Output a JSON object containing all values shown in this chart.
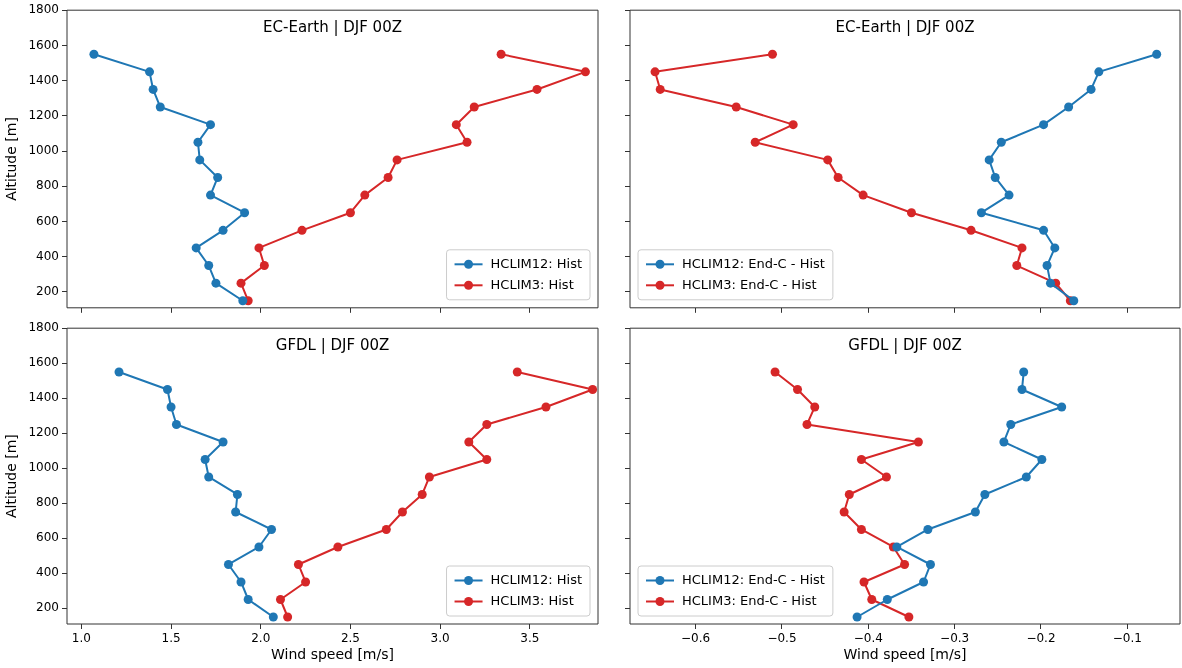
{
  "chart_data": [
    {
      "type": "line",
      "title": "EC-Earth | DJF 00Z",
      "ylabel": "Altitude [m]",
      "xlim": [
        0.92,
        3.88
      ],
      "xticks": [
        1,
        1.5,
        2,
        2.5,
        3,
        3.5
      ],
      "ylim": [
        110,
        1800
      ],
      "yticks": [
        200,
        400,
        600,
        800,
        1000,
        1200,
        1400,
        1600,
        1800
      ],
      "tick_labels": "y",
      "legend": "bottom right",
      "marker": "circle",
      "line_style": "solid",
      "series": [
        {
          "name": "HCLIM12: Hist",
          "color": "#1f77b4",
          "x": [
            1.9,
            1.75,
            1.71,
            1.64,
            1.79,
            1.91,
            1.72,
            1.76,
            1.66,
            1.65,
            1.72,
            1.44,
            1.4,
            1.38,
            1.07
          ],
          "values": [
            150,
            250,
            350,
            450,
            550,
            650,
            750,
            850,
            950,
            1050,
            1150,
            1250,
            1350,
            1450,
            1550
          ]
        },
        {
          "name": "HCLIM3: Hist",
          "color": "#d62728",
          "x": [
            1.93,
            1.89,
            2.02,
            1.99,
            2.23,
            2.5,
            2.58,
            2.71,
            2.76,
            3.15,
            3.09,
            3.19,
            3.54,
            3.81,
            3.34
          ],
          "values": [
            150,
            250,
            350,
            450,
            550,
            650,
            750,
            850,
            950,
            1050,
            1150,
            1250,
            1350,
            1450,
            1550
          ]
        }
      ]
    },
    {
      "type": "line",
      "title": "EC-Earth | DJF 00Z",
      "xlim": [
        -0.676,
        -0.039
      ],
      "xticks": [
        -0.6,
        -0.5,
        -0.4,
        -0.3,
        -0.2,
        -0.1
      ],
      "ylim": [
        110,
        1800
      ],
      "yticks": [
        200,
        400,
        600,
        800,
        1000,
        1200,
        1400,
        1600,
        1800
      ],
      "tick_labels": false,
      "legend": "bottom left",
      "marker": "circle",
      "line_style": "solid",
      "series": [
        {
          "name": "HCLIM12: End-C - Hist",
          "color": "#1f77b4",
          "x": [
            -0.162,
            -0.189,
            -0.193,
            -0.184,
            -0.197,
            -0.269,
            -0.237,
            -0.253,
            -0.26,
            -0.246,
            -0.197,
            -0.168,
            -0.142,
            -0.133,
            -0.066
          ],
          "values": [
            150,
            250,
            350,
            450,
            550,
            650,
            750,
            850,
            950,
            1050,
            1150,
            1250,
            1350,
            1450,
            1550
          ]
        },
        {
          "name": "HCLIM3: End-C - Hist",
          "color": "#d62728",
          "x": [
            -0.166,
            -0.183,
            -0.228,
            -0.222,
            -0.281,
            -0.35,
            -0.406,
            -0.435,
            -0.447,
            -0.531,
            -0.487,
            -0.553,
            -0.641,
            -0.647,
            -0.511
          ],
          "values": [
            150,
            250,
            350,
            450,
            550,
            650,
            750,
            850,
            950,
            1050,
            1150,
            1250,
            1350,
            1450,
            1550
          ]
        }
      ]
    },
    {
      "type": "line",
      "title": "GFDL | DJF 00Z",
      "xlabel": "Wind speed [m/s]",
      "ylabel": "Altitude [m]",
      "xlim": [
        0.92,
        3.88
      ],
      "xticks": [
        {
          "value": 1,
          "label": "1.0"
        },
        1.5,
        {
          "value": 2,
          "label": "2.0"
        },
        2.5,
        {
          "value": 3,
          "label": "3.0"
        },
        3.5
      ],
      "ylim": [
        110,
        1800
      ],
      "yticks": [
        200,
        400,
        600,
        800,
        1000,
        1200,
        1400,
        1600,
        1800
      ],
      "legend": "bottom right",
      "marker": "circle",
      "line_style": "solid",
      "series": [
        {
          "name": "HCLIM12: Hist",
          "color": "#1f77b4",
          "x": [
            2.07,
            1.93,
            1.89,
            1.82,
            1.99,
            2.06,
            1.86,
            1.87,
            1.71,
            1.69,
            1.79,
            1.53,
            1.5,
            1.48,
            1.21
          ],
          "values": [
            150,
            250,
            350,
            450,
            550,
            650,
            750,
            850,
            950,
            1050,
            1150,
            1250,
            1350,
            1450,
            1550
          ]
        },
        {
          "name": "HCLIM3: Hist",
          "color": "#d62728",
          "x": [
            2.15,
            2.11,
            2.25,
            2.21,
            2.43,
            2.7,
            2.79,
            2.9,
            2.94,
            3.26,
            3.16,
            3.26,
            3.59,
            3.85,
            3.43
          ],
          "values": [
            150,
            250,
            350,
            450,
            550,
            650,
            750,
            850,
            950,
            1050,
            1150,
            1250,
            1350,
            1450,
            1550
          ]
        }
      ]
    },
    {
      "type": "line",
      "title": "GFDL | DJF 00Z",
      "xlabel": "Wind speed [m/s]",
      "xlim": [
        -0.676,
        -0.039
      ],
      "xticks": [
        {
          "value": -0.6,
          "label": "−0.6"
        },
        {
          "value": -0.5,
          "label": "−0.5"
        },
        {
          "value": -0.4,
          "label": "−0.4"
        },
        {
          "value": -0.3,
          "label": "−0.3"
        },
        {
          "value": -0.2,
          "label": "−0.2"
        },
        {
          "value": -0.1,
          "label": "−0.1"
        }
      ],
      "ylim": [
        110,
        1800
      ],
      "yticks": [
        200,
        400,
        600,
        800,
        1000,
        1200,
        1400,
        1600,
        1800
      ],
      "tick_labels": "x",
      "legend": "bottom left",
      "marker": "circle",
      "line_style": "solid",
      "series": [
        {
          "name": "HCLIM12: End-C - Hist",
          "color": "#1f77b4",
          "x": [
            -0.413,
            -0.378,
            -0.336,
            -0.328,
            -0.367,
            -0.331,
            -0.276,
            -0.265,
            -0.217,
            -0.199,
            -0.243,
            -0.235,
            -0.176,
            -0.222,
            -0.22
          ],
          "values": [
            150,
            250,
            350,
            450,
            550,
            650,
            750,
            850,
            950,
            1050,
            1150,
            1250,
            1350,
            1450,
            1550
          ]
        },
        {
          "name": "HCLIM3: End-C - Hist",
          "color": "#d62728",
          "x": [
            -0.353,
            -0.396,
            -0.405,
            -0.358,
            -0.371,
            -0.408,
            -0.428,
            -0.422,
            -0.379,
            -0.408,
            -0.342,
            -0.471,
            -0.462,
            -0.482,
            -0.508
          ],
          "values": [
            150,
            250,
            350,
            450,
            550,
            650,
            750,
            850,
            950,
            1050,
            1150,
            1250,
            1350,
            1450,
            1550
          ]
        }
      ]
    }
  ]
}
